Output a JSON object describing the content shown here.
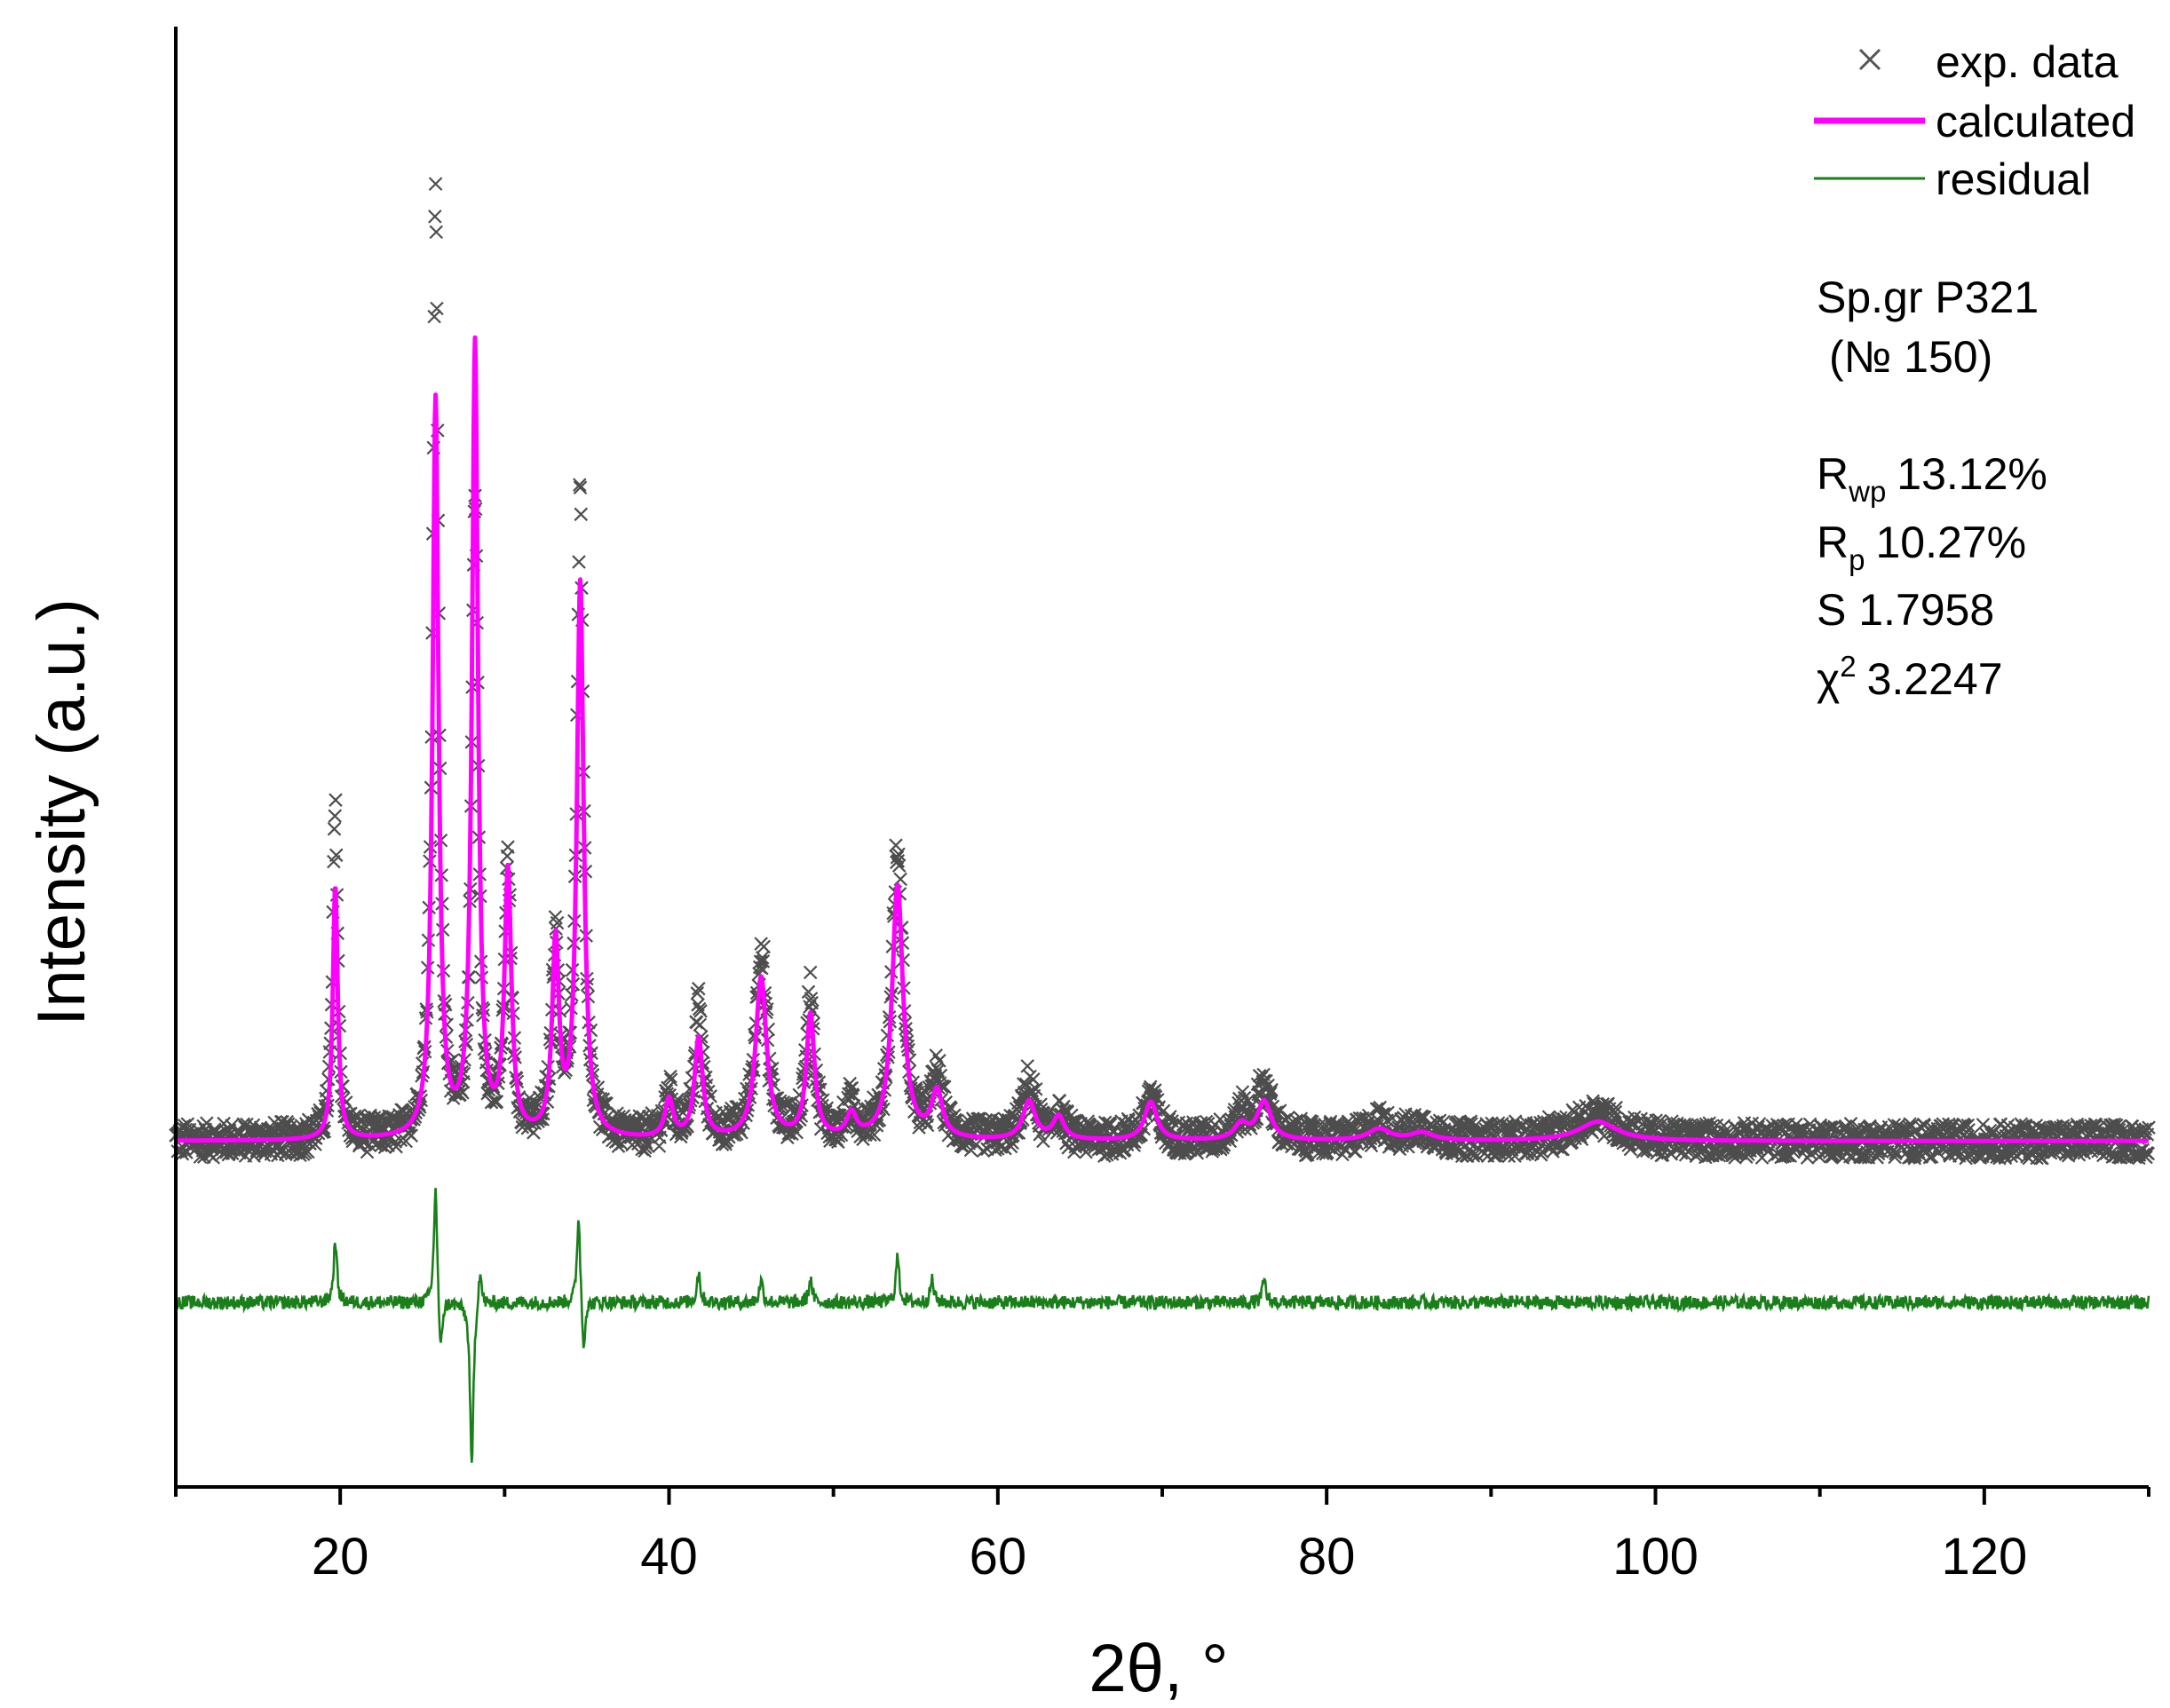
{
  "chart_data": {
    "type": "line",
    "title": "",
    "xlabel": "2θ, °",
    "ylabel": "Intensity (a.u.)",
    "xlim": [
      10,
      130
    ],
    "ylim": [
      -0.45,
      1.45
    ],
    "x_ticks": [
      20,
      40,
      60,
      80,
      100,
      120
    ],
    "x_tick_labels": [
      "20",
      "40",
      "60",
      "80",
      "100",
      "120"
    ],
    "y_ticks_shown": false,
    "grid": false,
    "legend": {
      "position": "top-right",
      "entries": [
        {
          "label": "exp. data",
          "marker": "x",
          "color": "#555555"
        },
        {
          "label": "calculated",
          "line": "solid",
          "color": "#ff00ff"
        },
        {
          "label": "residual",
          "line": "solid",
          "color": "#1a7f1a"
        }
      ]
    },
    "annotations": {
      "space_group": "Sp.gr P321",
      "space_group_number": "(№ 150)",
      "rwp_symbol": "R",
      "rwp_subscript": "wp",
      "rwp_value": "13.12%",
      "rp_symbol": "R",
      "rp_subscript": "p",
      "rp_value": "10.27%",
      "s_label": "S 1.7958",
      "chi_symbol": "χ",
      "chi_superscript": "2",
      "chi_value": "3.2247"
    },
    "background_level": 0.0,
    "residual_offset": -0.21,
    "peaks": [
      {
        "pos": 19.7,
        "exp": 0.44,
        "calc": 0.33,
        "width": 0.18
      },
      {
        "pos": 25.8,
        "exp": 1.22,
        "calc": 0.96,
        "width": 0.22
      },
      {
        "pos": 28.2,
        "exp": 0.84,
        "calc": 1.03,
        "width": 0.22
      },
      {
        "pos": 30.2,
        "exp": 0.35,
        "calc": 0.34,
        "width": 0.25
      },
      {
        "pos": 33.1,
        "exp": 0.26,
        "calc": 0.25,
        "width": 0.25
      },
      {
        "pos": 34.6,
        "exp": 0.83,
        "calc": 0.72,
        "width": 0.25
      },
      {
        "pos": 40.0,
        "exp": 0.06,
        "calc": 0.05,
        "width": 0.3
      },
      {
        "pos": 41.8,
        "exp": 0.17,
        "calc": 0.13,
        "width": 0.3
      },
      {
        "pos": 45.6,
        "exp": 0.25,
        "calc": 0.21,
        "width": 0.4
      },
      {
        "pos": 48.6,
        "exp": 0.19,
        "calc": 0.16,
        "width": 0.3
      },
      {
        "pos": 51.1,
        "exp": 0.04,
        "calc": 0.03,
        "width": 0.35
      },
      {
        "pos": 53.9,
        "exp": 0.37,
        "calc": 0.33,
        "width": 0.4
      },
      {
        "pos": 56.3,
        "exp": 0.08,
        "calc": 0.06,
        "width": 0.4
      },
      {
        "pos": 61.9,
        "exp": 0.07,
        "calc": 0.05,
        "width": 0.45
      },
      {
        "pos": 63.7,
        "exp": 0.03,
        "calc": 0.03,
        "width": 0.4
      },
      {
        "pos": 69.3,
        "exp": 0.06,
        "calc": 0.05,
        "width": 0.45
      },
      {
        "pos": 74.8,
        "exp": 0.03,
        "calc": 0.02,
        "width": 0.5
      },
      {
        "pos": 76.2,
        "exp": 0.07,
        "calc": 0.05,
        "width": 0.5
      },
      {
        "pos": 83.2,
        "exp": 0.02,
        "calc": 0.015,
        "width": 0.8
      },
      {
        "pos": 85.8,
        "exp": 0.015,
        "calc": 0.01,
        "width": 0.8
      },
      {
        "pos": 96.5,
        "exp": 0.035,
        "calc": 0.025,
        "width": 1.4
      }
    ],
    "residual_features": [
      {
        "pos": 19.7,
        "amp": 0.08
      },
      {
        "pos": 25.8,
        "amp": 0.16
      },
      {
        "pos": 26.1,
        "amp": -0.08
      },
      {
        "pos": 28.0,
        "amp": -0.22
      },
      {
        "pos": 28.5,
        "amp": 0.05
      },
      {
        "pos": 34.5,
        "amp": 0.12
      },
      {
        "pos": 34.8,
        "amp": -0.07
      },
      {
        "pos": 41.8,
        "amp": 0.04
      },
      {
        "pos": 45.6,
        "amp": 0.03
      },
      {
        "pos": 48.6,
        "amp": 0.03
      },
      {
        "pos": 53.9,
        "amp": 0.06
      },
      {
        "pos": 56.0,
        "amp": 0.03
      },
      {
        "pos": 76.2,
        "amp": 0.03
      }
    ]
  }
}
